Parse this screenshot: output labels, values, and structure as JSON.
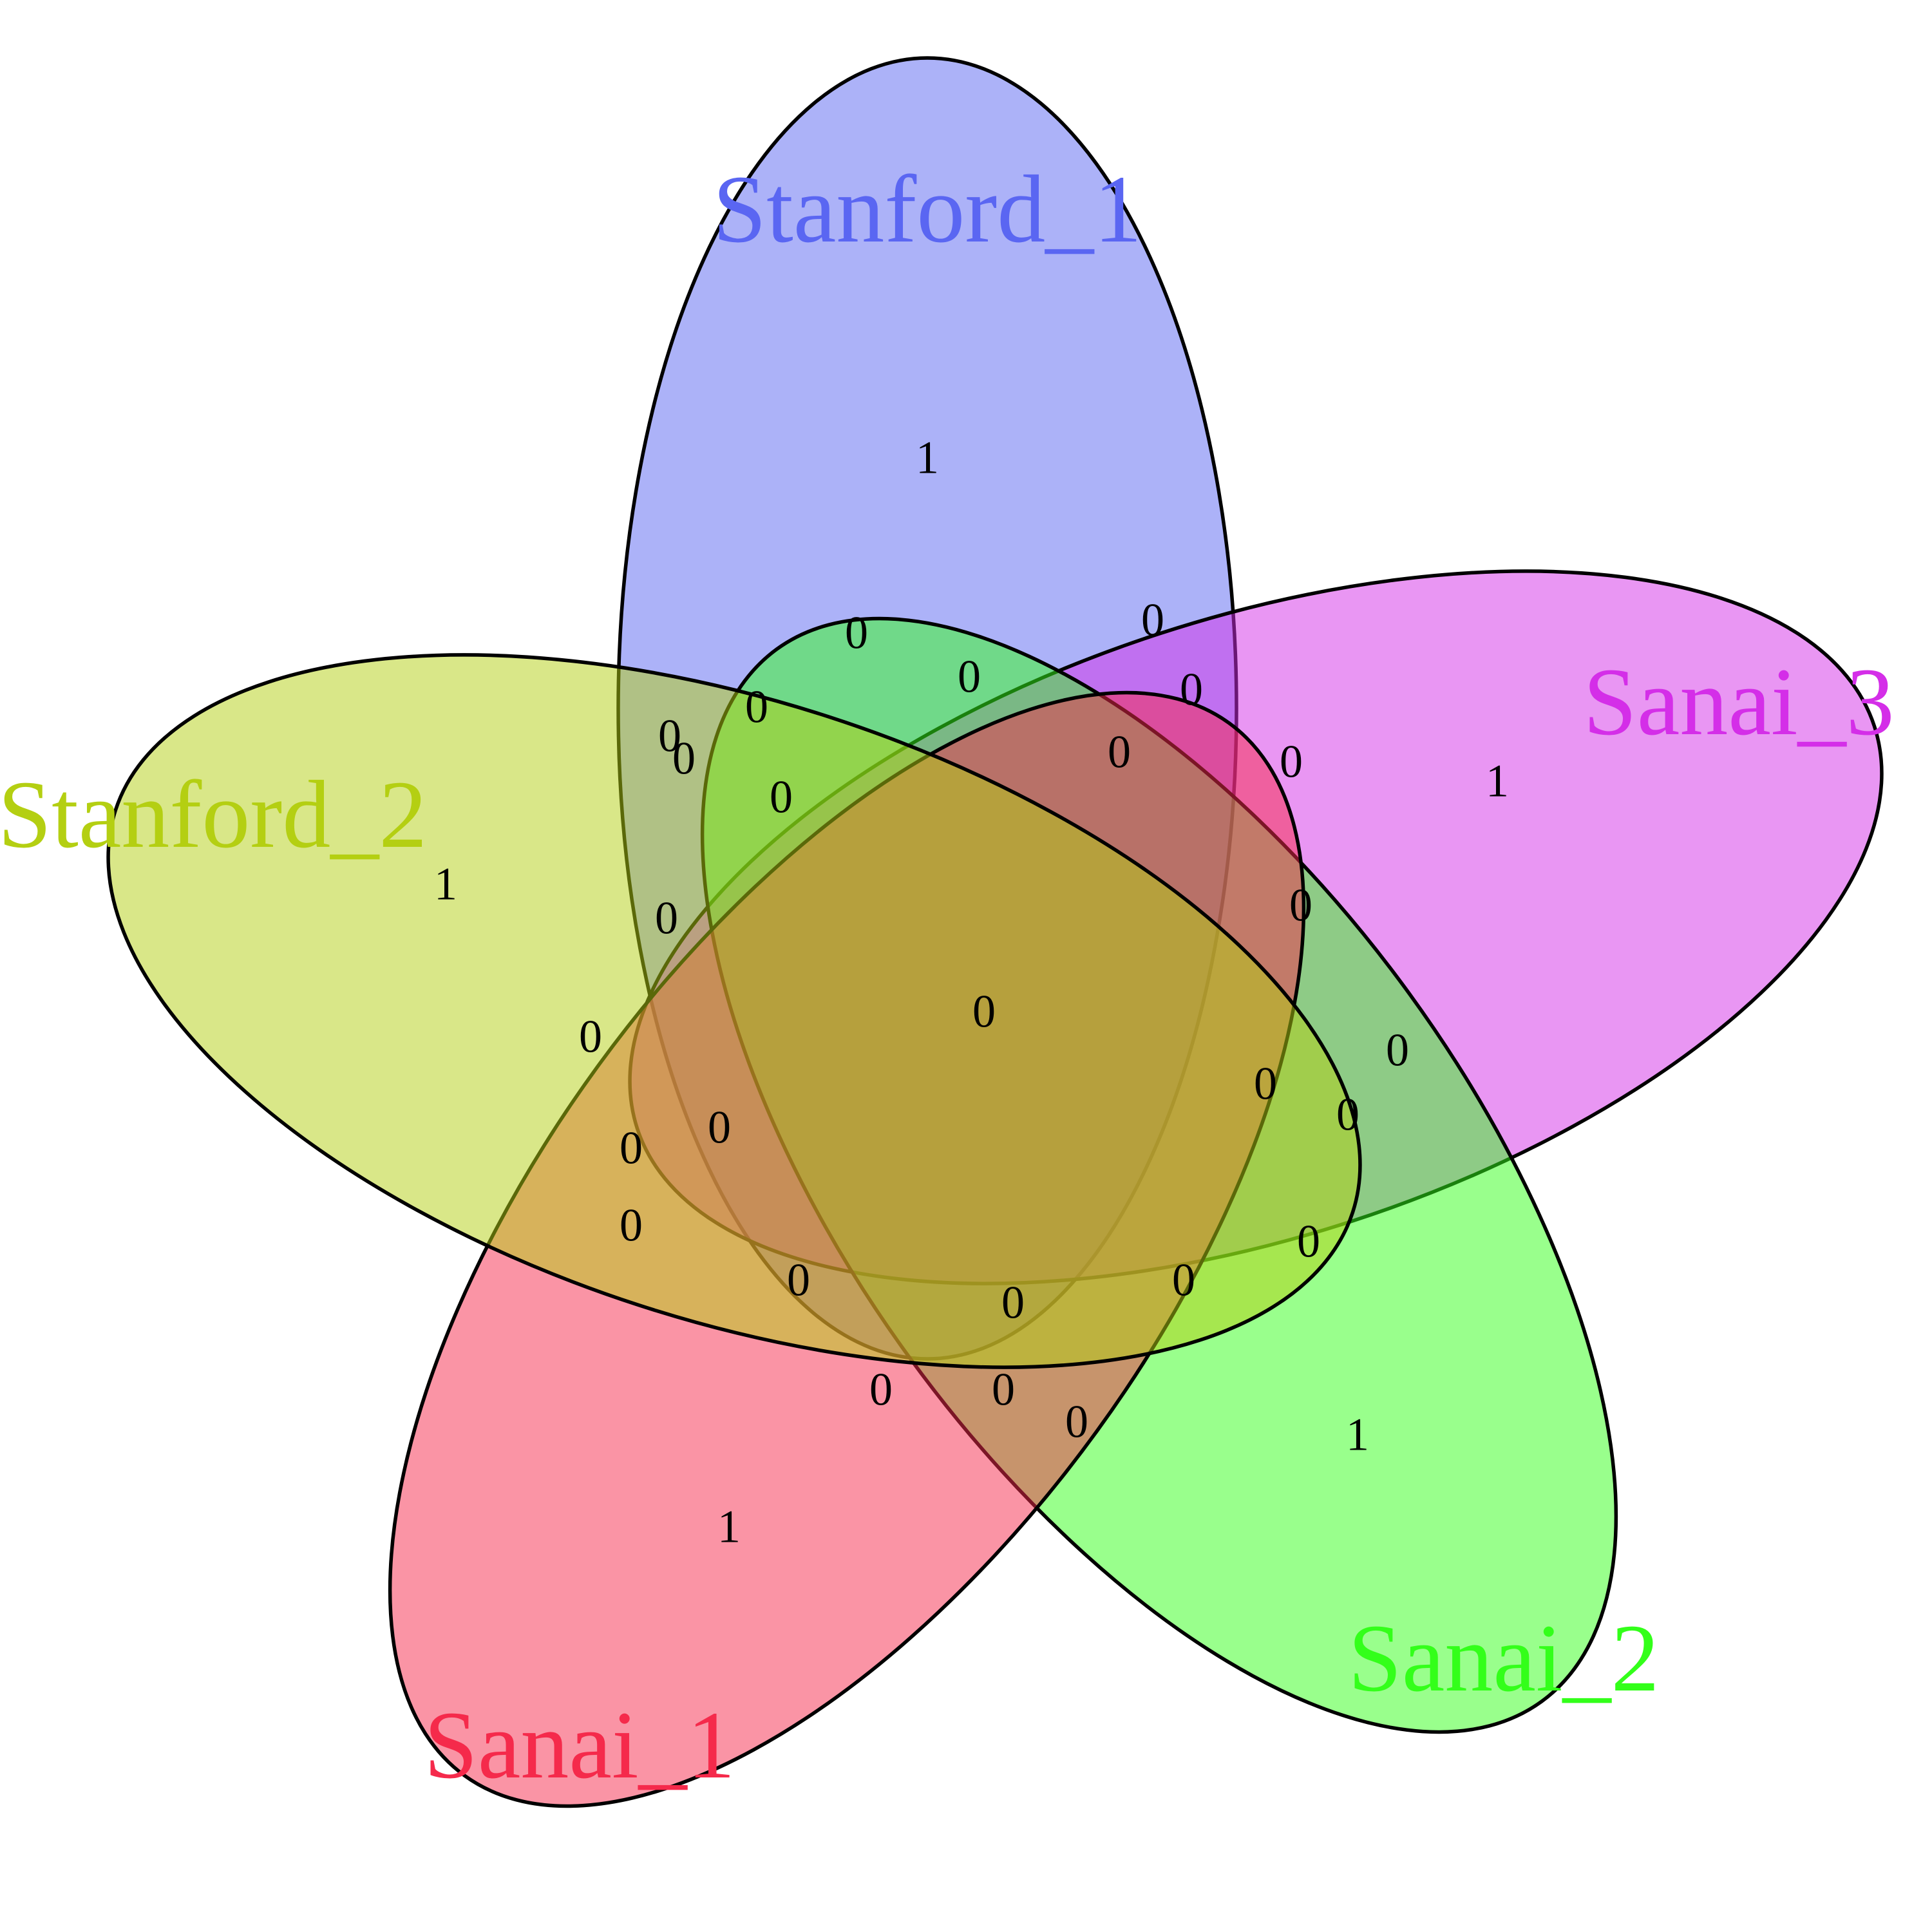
{
  "diagram": {
    "type": "venn",
    "set_count": 5,
    "sets": [
      {
        "id": "stanford1",
        "label": "Stanford_1",
        "color": "#5a66f2",
        "fill": "#5a66f2",
        "count_only": 1
      },
      {
        "id": "sanai3",
        "label": "Sanai_3",
        "color": "#d42ee8",
        "fill": "#d42ee8",
        "count_only": 1
      },
      {
        "id": "sanai2",
        "label": "Sanai_2",
        "color": "#33ff1a",
        "fill": "#33ff1a",
        "count_only": 1
      },
      {
        "id": "sanai1",
        "label": "Sanai_1",
        "color": "#f52a4b",
        "fill": "#f52a4b",
        "count_only": 1
      },
      {
        "id": "stanford2",
        "label": "Stanford_2",
        "color": "#b4cf12",
        "fill": "#b4cf12",
        "count_only": 1
      }
    ],
    "unique_counts": [
      "1",
      "1",
      "1",
      "1",
      "1"
    ],
    "center_count": "0",
    "overlap_counts": [
      "0",
      "0",
      "0",
      "0",
      "0",
      "0",
      "0",
      "0",
      "0",
      "0",
      "0",
      "0",
      "0",
      "0",
      "0",
      "0",
      "0",
      "0",
      "0",
      "0",
      "0",
      "0",
      "0",
      "0",
      "0",
      "0"
    ]
  }
}
